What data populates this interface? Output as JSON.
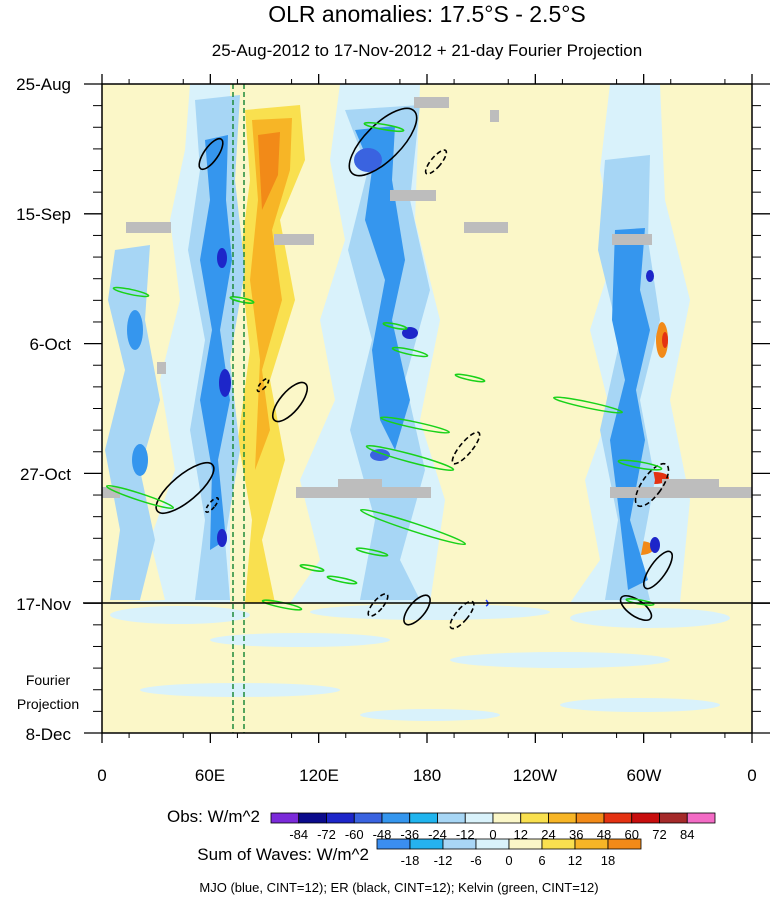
{
  "chart_data": {
    "type": "heatmap",
    "title": "OLR anomalies: 17.5°S - 2.5°S",
    "subtitle": "25-Aug-2012 to 17-Nov-2012 + 21-day Fourier Projection",
    "x_ticks": [
      "0",
      "60E",
      "120E",
      "180",
      "120W",
      "60W",
      "0"
    ],
    "y_ticks": [
      "25-Aug",
      "15-Sep",
      "6-Oct",
      "27-Oct",
      "17-Nov",
      "8-Dec"
    ],
    "projection_label_line1": "Fourier",
    "projection_label_line2": "Projection",
    "obs_colorbar": {
      "label": "Obs: W/m^2",
      "levels": [
        "-84",
        "-72",
        "-60",
        "-48",
        "-36",
        "-24",
        "-12",
        "0",
        "12",
        "24",
        "36",
        "48",
        "60",
        "72",
        "84"
      ],
      "colors": [
        "#7b2ad9",
        "#0b0b8c",
        "#1d26c9",
        "#3a63e0",
        "#3596ee",
        "#20b4ee",
        "#a7d6f5",
        "#d9f2fb",
        "#fbf7c8",
        "#f9e04f",
        "#f7b526",
        "#f28a18",
        "#e43212",
        "#c80e0e",
        "#a52a2a",
        "#f36bc5"
      ]
    },
    "waves_colorbar": {
      "label": "Sum of Waves: W/m^2",
      "levels": [
        "-18",
        "-12",
        "-6",
        "0",
        "6",
        "12",
        "18"
      ],
      "colors": [
        "#3b8ef0",
        "#25b2ef",
        "#a9d6f6",
        "#d9f2fb",
        "#fbf7c8",
        "#f9e04f",
        "#f7b526",
        "#f28a18"
      ]
    },
    "footer": "MJO (blue, CINT=12); ER (black, CINT=12); Kelvin (green, CINT=12)",
    "series_colors": {
      "mjo": "#1e3cff",
      "er": "#000000",
      "kelvin": "#19d219",
      "reference_line": "#1e8a3a",
      "missing": "#bdbdbd"
    }
  }
}
